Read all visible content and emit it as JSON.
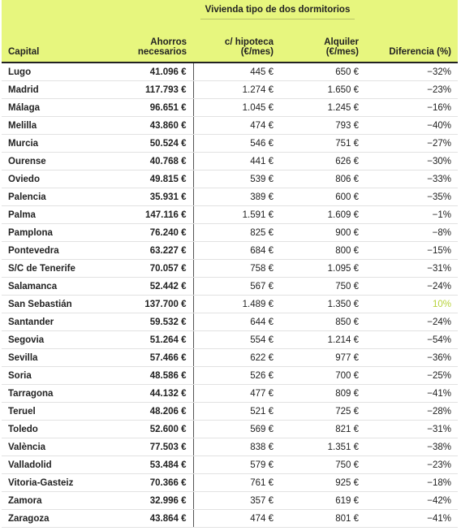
{
  "table": {
    "group_title": "Vivienda tipo de dos dormitorios",
    "columns": [
      "Capital",
      "Ahorros necesarios",
      "c/ hipoteca (€/mes)",
      "Alquiler (€/mes)",
      "Diferencia (%)"
    ],
    "rows": [
      [
        "Lugo",
        "41.096 €",
        "445 €",
        "650 €",
        "−32%"
      ],
      [
        "Madrid",
        "117.793 €",
        "1.274 €",
        "1.650 €",
        "−23%"
      ],
      [
        "Málaga",
        "96.651 €",
        "1.045 €",
        "1.245 €",
        "−16%"
      ],
      [
        "Melilla",
        "43.860 €",
        "474 €",
        "793 €",
        "−40%"
      ],
      [
        "Murcia",
        "50.524 €",
        "546 €",
        "751 €",
        "−27%"
      ],
      [
        "Ourense",
        "40.768 €",
        "441 €",
        "626 €",
        "−30%"
      ],
      [
        "Oviedo",
        "49.815 €",
        "539 €",
        "806 €",
        "−33%"
      ],
      [
        "Palencia",
        "35.931 €",
        "389 €",
        "600 €",
        "−35%"
      ],
      [
        "Palma",
        "147.116 €",
        "1.591 €",
        "1.609 €",
        "−1%"
      ],
      [
        "Pamplona",
        "76.240 €",
        "825 €",
        "900 €",
        "−8%"
      ],
      [
        "Pontevedra",
        "63.227 €",
        "684 €",
        "800 €",
        "−15%"
      ],
      [
        "S/C de Tenerife",
        "70.057 €",
        "758 €",
        "1.095 €",
        "−31%"
      ],
      [
        "Salamanca",
        "52.442 €",
        "567 €",
        "750 €",
        "−24%"
      ],
      [
        "San Sebastián",
        "137.700 €",
        "1.489 €",
        "1.350 €",
        "10%"
      ],
      [
        "Santander",
        "59.532 €",
        "644 €",
        "850 €",
        "−24%"
      ],
      [
        "Segovia",
        "51.264 €",
        "554 €",
        "1.214 €",
        "−54%"
      ],
      [
        "Sevilla",
        "57.466 €",
        "622 €",
        "977 €",
        "−36%"
      ],
      [
        "Soria",
        "48.586 €",
        "526 €",
        "700 €",
        "−25%"
      ],
      [
        "Tarragona",
        "44.132 €",
        "477 €",
        "809 €",
        "−41%"
      ],
      [
        "Teruel",
        "48.206 €",
        "521 €",
        "725 €",
        "−28%"
      ],
      [
        "Toledo",
        "52.600 €",
        "569 €",
        "821 €",
        "−31%"
      ],
      [
        "València",
        "77.503 €",
        "838 €",
        "1.351 €",
        "−38%"
      ],
      [
        "Valladolid",
        "53.484 €",
        "579 €",
        "750 €",
        "−23%"
      ],
      [
        "Vitoria-Gasteiz",
        "70.366 €",
        "761 €",
        "925 €",
        "−18%"
      ],
      [
        "Zamora",
        "32.996 €",
        "357 €",
        "619 €",
        "−42%"
      ],
      [
        "Zaragoza",
        "43.864 €",
        "474 €",
        "801 €",
        "−41%"
      ]
    ]
  }
}
